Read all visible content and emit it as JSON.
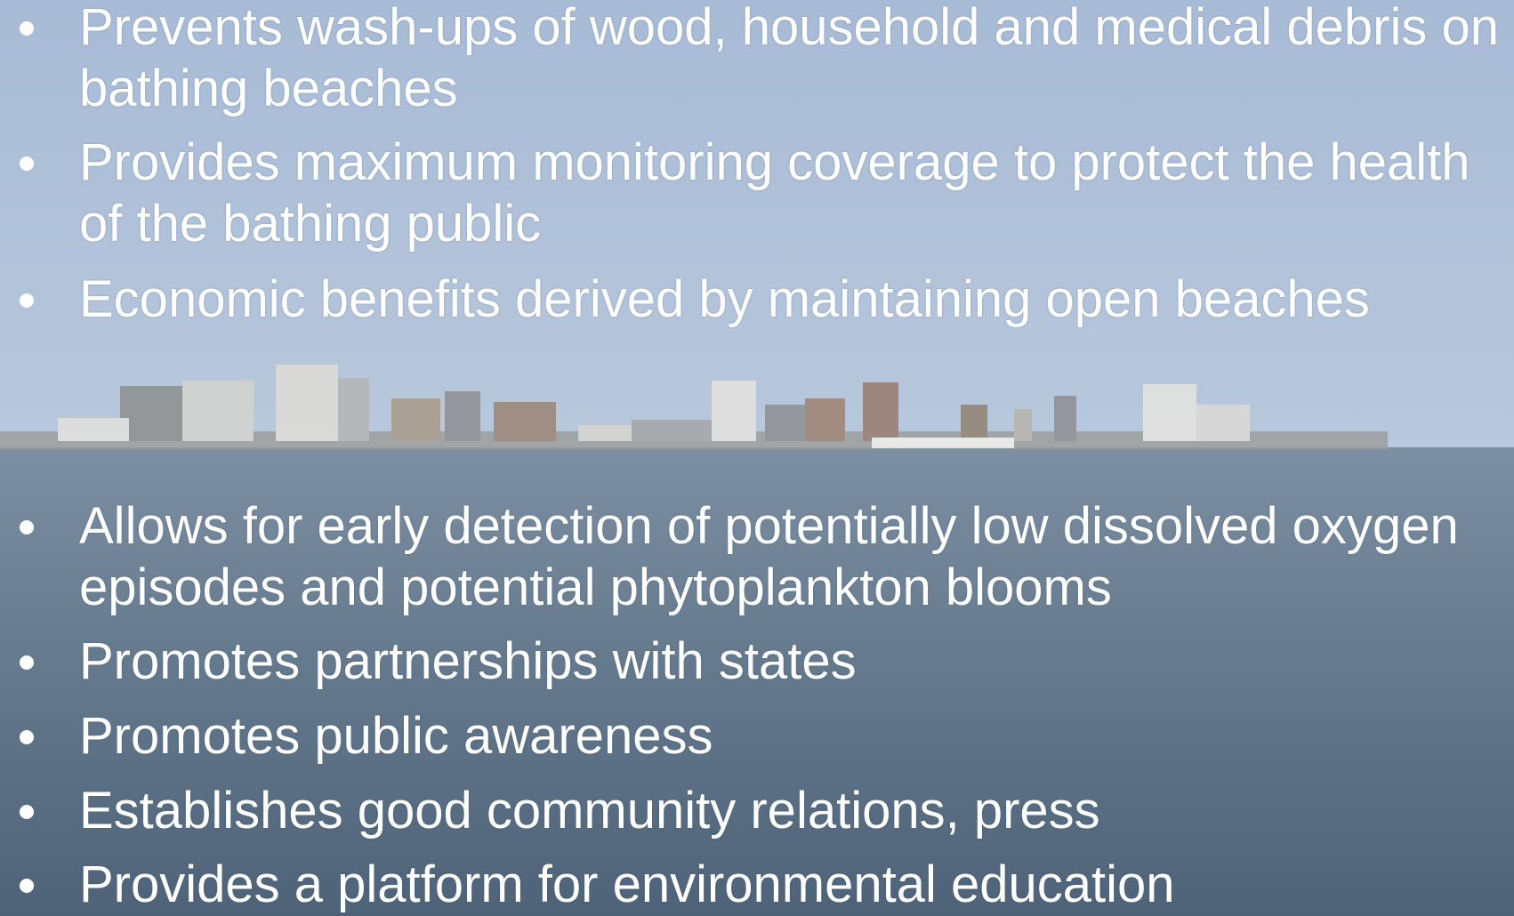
{
  "bullets_top": [
    "Prevents wash-ups of wood, household and medical debris on bathing beaches",
    "Provides maximum monitoring coverage to protect the health of the bathing public",
    "Economic benefits derived by maintaining open beaches"
  ],
  "bullets_bottom": [
    "Allows for early detection of potentially low dissolved oxygen episodes and potential phytoplankton blooms",
    "Promotes partnerships with states",
    "Promotes public awareness",
    "Establishes good community relations, press",
    "Provides a platform for environmental education"
  ]
}
